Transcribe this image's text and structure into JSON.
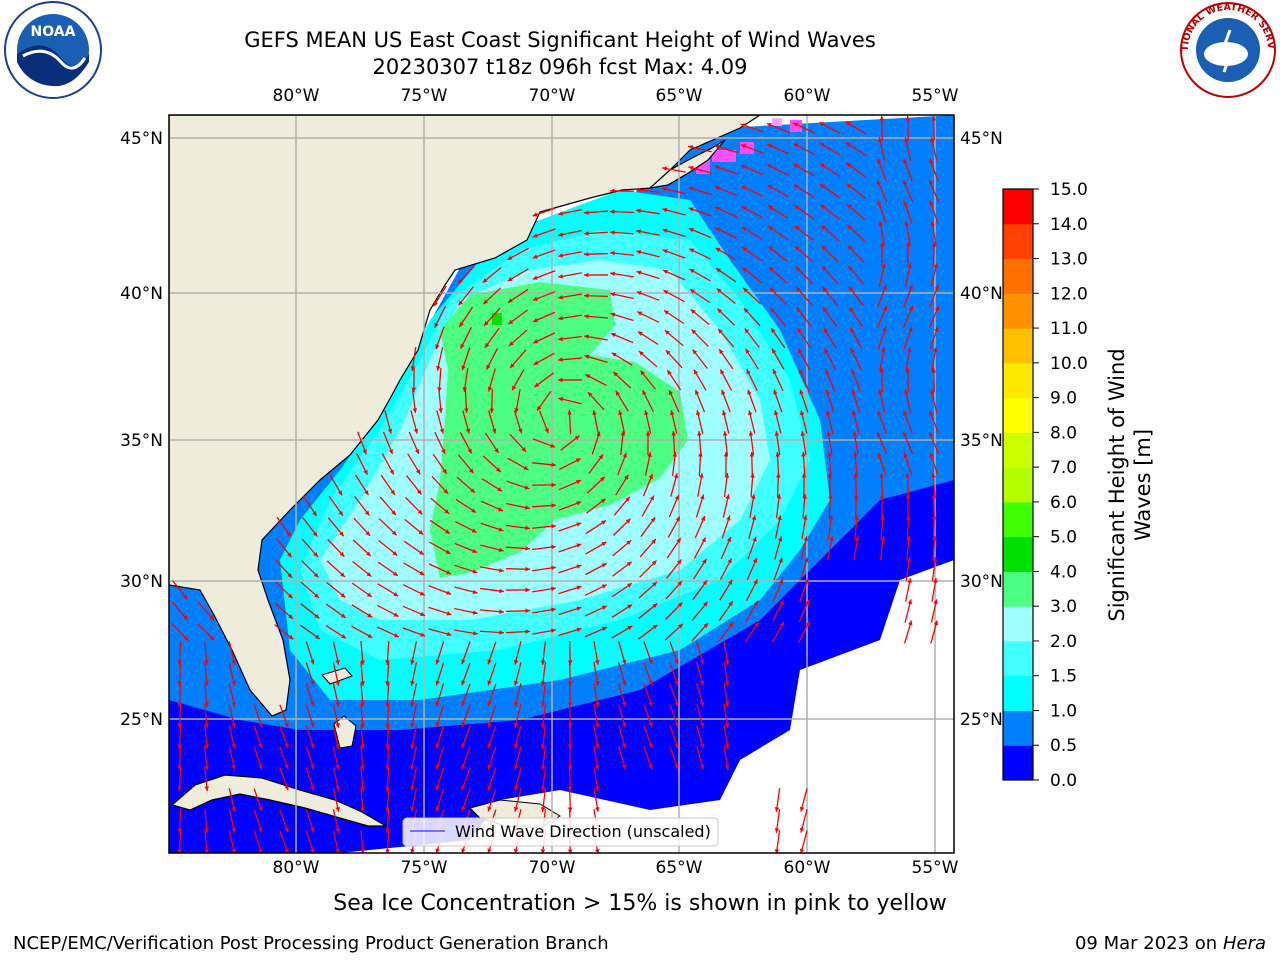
{
  "title": {
    "line1": "GEFS MEAN US East Coast Significant Height of Wind Waves",
    "line2": "20230307 t18z 096h fcst   Max: 4.09"
  },
  "logos": {
    "noaa": "NOAA",
    "nws": "NATIONAL WEATHER SERVICE"
  },
  "map": {
    "lon_labels": [
      "80°W",
      "75°W",
      "70°W",
      "65°W",
      "60°W",
      "55°W"
    ],
    "lat_labels": [
      "45°N",
      "40°N",
      "35°N",
      "30°N",
      "25°N"
    ],
    "legend_label": "Wind Wave Direction (unscaled)",
    "land_color": "#efecdc",
    "arrow_color": "#ff0000",
    "grid_color": "#b0b0b0"
  },
  "colorbar": {
    "label_line1": "Significant Height of Wind",
    "label_line2": "Waves [m]",
    "ticks": [
      "0.0",
      "0.5",
      "1.0",
      "1.5",
      "2.0",
      "3.0",
      "4.0",
      "5.0",
      "6.0",
      "7.0",
      "8.0",
      "9.0",
      "10.0",
      "11.0",
      "12.0",
      "13.0",
      "14.0",
      "15.0"
    ],
    "colors": [
      "#0000ff",
      "#0080ff",
      "#00ffff",
      "#40ffff",
      "#9fffff",
      "#4dff80",
      "#00e000",
      "#40ff00",
      "#b3ff00",
      "#ccff00",
      "#ffff00",
      "#ffe800",
      "#ffc000",
      "#ff9000",
      "#ff7000",
      "#ff4000",
      "#ff0000"
    ]
  },
  "caption": "Sea Ice Concentration > 15% is shown in pink to yellow",
  "footer": {
    "left": "NCEP/EMC/Verification Post Processing Product Generation Branch",
    "right_date": "09 Mar 2023 on",
    "right_host": "Hera"
  }
}
